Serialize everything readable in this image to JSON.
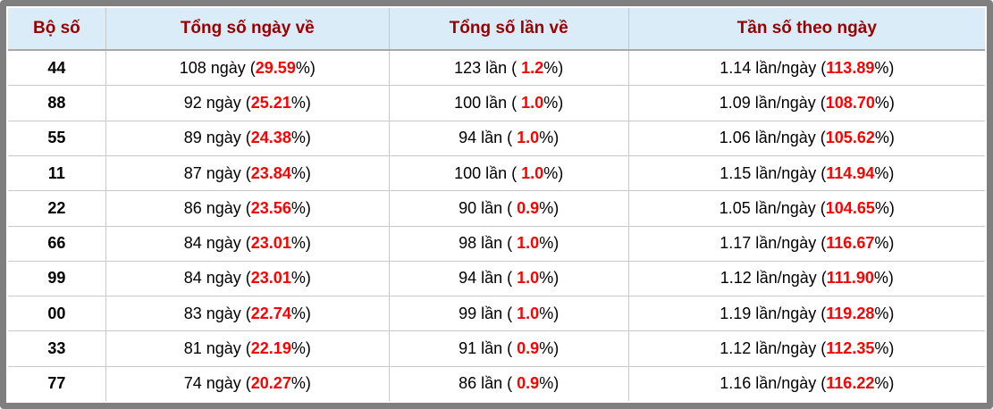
{
  "colors": {
    "frame_border": "#7f7f7f",
    "header_background": "#d9ecf7",
    "header_text": "#990000",
    "highlight_red": "#ff0000",
    "body_text": "#000000",
    "cell_border": "#c9c9c9"
  },
  "table": {
    "headers": [
      "Bộ số",
      "Tổng số ngày về",
      "Tổng số lần về",
      "Tần số theo ngày"
    ],
    "rows": [
      {
        "pair": "44",
        "days": {
          "pre": "108 ngày (",
          "red": "29.59",
          "post": "%)"
        },
        "times": {
          "pre": "123 lần ( ",
          "red": "1.2",
          "post": "%)"
        },
        "freq": {
          "pre": "1.14 lần/ngày (",
          "red": "113.89",
          "post": "%)"
        }
      },
      {
        "pair": "88",
        "days": {
          "pre": "92 ngày (",
          "red": "25.21",
          "post": "%)"
        },
        "times": {
          "pre": "100 lần ( ",
          "red": "1.0",
          "post": "%)"
        },
        "freq": {
          "pre": "1.09 lần/ngày (",
          "red": "108.70",
          "post": "%)"
        }
      },
      {
        "pair": "55",
        "days": {
          "pre": "89 ngày (",
          "red": "24.38",
          "post": "%)"
        },
        "times": {
          "pre": "94 lần ( ",
          "red": "1.0",
          "post": "%)"
        },
        "freq": {
          "pre": "1.06 lần/ngày (",
          "red": "105.62",
          "post": "%)"
        }
      },
      {
        "pair": "11",
        "days": {
          "pre": "87 ngày (",
          "red": "23.84",
          "post": "%)"
        },
        "times": {
          "pre": "100 lần ( ",
          "red": "1.0",
          "post": "%)"
        },
        "freq": {
          "pre": "1.15 lần/ngày (",
          "red": "114.94",
          "post": "%)"
        }
      },
      {
        "pair": "22",
        "days": {
          "pre": "86 ngày (",
          "red": "23.56",
          "post": "%)"
        },
        "times": {
          "pre": "90 lần ( ",
          "red": "0.9",
          "post": "%)"
        },
        "freq": {
          "pre": "1.05 lần/ngày (",
          "red": "104.65",
          "post": "%)"
        }
      },
      {
        "pair": "66",
        "days": {
          "pre": "84 ngày (",
          "red": "23.01",
          "post": "%)"
        },
        "times": {
          "pre": "98 lần ( ",
          "red": "1.0",
          "post": "%)"
        },
        "freq": {
          "pre": "1.17 lần/ngày (",
          "red": "116.67",
          "post": "%)"
        }
      },
      {
        "pair": "99",
        "days": {
          "pre": "84 ngày (",
          "red": "23.01",
          "post": "%)"
        },
        "times": {
          "pre": "94 lần ( ",
          "red": "1.0",
          "post": "%)"
        },
        "freq": {
          "pre": "1.12 lần/ngày (",
          "red": "111.90",
          "post": "%)"
        }
      },
      {
        "pair": "00",
        "days": {
          "pre": "83 ngày (",
          "red": "22.74",
          "post": "%)"
        },
        "times": {
          "pre": "99 lần ( ",
          "red": "1.0",
          "post": "%)"
        },
        "freq": {
          "pre": "1.19 lần/ngày (",
          "red": "119.28",
          "post": "%)"
        }
      },
      {
        "pair": "33",
        "days": {
          "pre": "81 ngày (",
          "red": "22.19",
          "post": "%)"
        },
        "times": {
          "pre": "91 lần ( ",
          "red": "0.9",
          "post": "%)"
        },
        "freq": {
          "pre": "1.12 lần/ngày (",
          "red": "112.35",
          "post": "%)"
        }
      },
      {
        "pair": "77",
        "days": {
          "pre": "74 ngày (",
          "red": "20.27",
          "post": "%)"
        },
        "times": {
          "pre": "86 lần ( ",
          "red": "0.9",
          "post": "%)"
        },
        "freq": {
          "pre": "1.16 lần/ngày (",
          "red": "116.22",
          "post": "%)"
        }
      }
    ]
  }
}
